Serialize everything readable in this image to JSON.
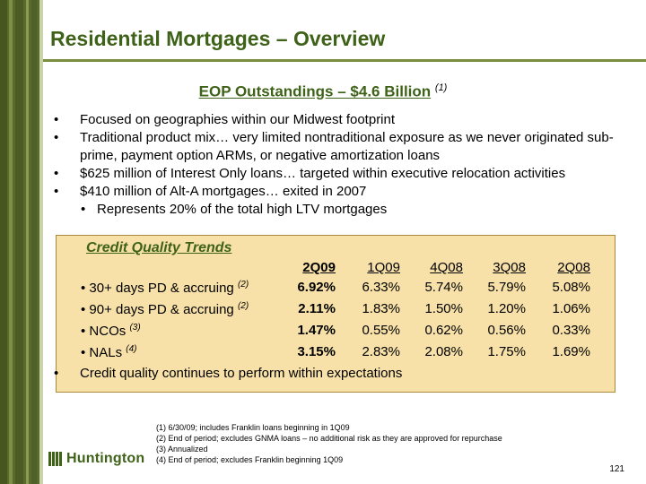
{
  "title": "Residential Mortgages – Overview",
  "subtitle": {
    "text": "EOP Outstandings – $4.6 Billion",
    "note": "(1)"
  },
  "bullets": [
    "Focused on geographies within our Midwest footprint",
    "Traditional product mix… very limited nontraditional exposure as we never originated sub-prime, payment option ARMs, or negative amortization loans",
    "$625 million of Interest Only loans… targeted within executive relocation activities",
    "$410 million of Alt-A mortgages… exited in 2007"
  ],
  "sub_bullet": "Represents 20% of the total high LTV mortgages",
  "credit_quality": {
    "title": "Credit Quality Trends",
    "columns": [
      "2Q09",
      "1Q09",
      "4Q08",
      "3Q08",
      "2Q08"
    ],
    "rows": [
      {
        "label": "30+ days PD & accruing",
        "note": "(2)",
        "values": [
          "6.92%",
          "6.33%",
          "5.74%",
          "5.79%",
          "5.08%"
        ]
      },
      {
        "label": "90+ days PD & accruing",
        "note": "(2)",
        "values": [
          "2.11%",
          "1.83%",
          "1.50%",
          "1.20%",
          "1.06%"
        ]
      },
      {
        "label": "NCOs",
        "note": "(3)",
        "values": [
          "1.47%",
          "0.55%",
          "0.62%",
          "0.56%",
          "0.33%"
        ]
      },
      {
        "label": "NALs",
        "note": "(4)",
        "values": [
          "3.15%",
          "2.83%",
          "2.08%",
          "1.75%",
          "1.69%"
        ]
      }
    ],
    "closing_bullet": "Credit quality continues to perform within expectations"
  },
  "footnotes": [
    "(1)  6/30/09; includes Franklin loans beginning in 1Q09",
    "(2)  End of period; excludes GNMA loans – no additional risk as they are approved for repurchase",
    "(3) Annualized",
    "(4) End of period; excludes Franklin beginning 1Q09"
  ],
  "logo": {
    "text": "Huntington",
    "icon": "huntington-logo-icon"
  },
  "page_number": "121",
  "colors": {
    "title_green": "#3f6219",
    "box_fill": "#f7e1a8",
    "sidebar": "#586a2c"
  }
}
